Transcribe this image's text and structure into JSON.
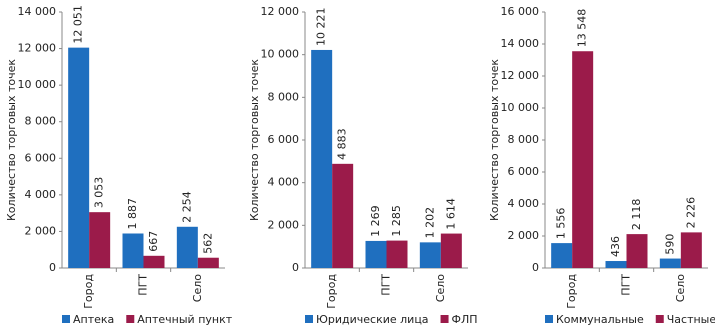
{
  "chart_data": [
    {
      "type": "bar",
      "y_label": "Количество торговых точек",
      "categories": [
        "Город",
        "ПГТ",
        "Село"
      ],
      "series": [
        {
          "name": "Аптека",
          "color": "#1f6fbf",
          "values": [
            12051,
            1887,
            2254
          ],
          "value_labels": [
            "12 051",
            "1 887",
            "2 254"
          ]
        },
        {
          "name": "Аптечный пункт",
          "color": "#9b1b4a",
          "values": [
            3053,
            667,
            562
          ],
          "value_labels": [
            "3 053",
            "667",
            "562"
          ]
        }
      ],
      "ylim": [
        0,
        14000
      ],
      "yticks": [
        0,
        {
          "value": 2000,
          "label": "2 000"
        },
        {
          "value": 4000,
          "label": "4 000"
        },
        {
          "value": 6000,
          "label": "6 000"
        },
        {
          "value": 8000,
          "label": "8 000"
        },
        {
          "value": 10000,
          "label": "10 000"
        },
        {
          "value": 12000,
          "label": "12 000"
        },
        {
          "value": 14000,
          "label": "14 000"
        }
      ],
      "legend": "bottom"
    },
    {
      "type": "bar",
      "y_label": "Количество торговых точек",
      "categories": [
        "Город",
        "ПГТ",
        "Село"
      ],
      "series": [
        {
          "name": "Юридические лица",
          "color": "#1f6fbf",
          "values": [
            10221,
            1269,
            1202
          ],
          "value_labels": [
            "10 221",
            "1 269",
            "1 202"
          ]
        },
        {
          "name": "ФЛП",
          "color": "#9b1b4a",
          "values": [
            4883,
            1285,
            1614
          ],
          "value_labels": [
            "4 883",
            "1 285",
            "1 614"
          ]
        }
      ],
      "ylim": [
        0,
        12000
      ],
      "yticks": [
        0,
        {
          "value": 2000,
          "label": "2 000"
        },
        {
          "value": 4000,
          "label": "4 000"
        },
        {
          "value": 6000,
          "label": "6 000"
        },
        {
          "value": 8000,
          "label": "8 000"
        },
        {
          "value": 10000,
          "label": "10 000"
        },
        {
          "value": 12000,
          "label": "12 000"
        }
      ],
      "legend": "bottom"
    },
    {
      "type": "bar",
      "y_label": "Количество торговых точек",
      "categories": [
        "Город",
        "ПГТ",
        "Село"
      ],
      "series": [
        {
          "name": "Коммунальные",
          "color": "#1f6fbf",
          "values": [
            1556,
            436,
            590
          ],
          "value_labels": [
            "1 556",
            "436",
            "590"
          ]
        },
        {
          "name": "Частные",
          "color": "#9b1b4a",
          "values": [
            13548,
            2118,
            2226
          ],
          "value_labels": [
            "13 548",
            "2 118",
            "2 226"
          ]
        }
      ],
      "ylim": [
        0,
        16000
      ],
      "yticks": [
        0,
        {
          "value": 2000,
          "label": "2 000"
        },
        {
          "value": 4000,
          "label": "4 000"
        },
        {
          "value": 6000,
          "label": "6 000"
        },
        {
          "value": 8000,
          "label": "8 000"
        },
        {
          "value": 10000,
          "label": "10 000"
        },
        {
          "value": 12000,
          "label": "12 000"
        },
        {
          "value": 14000,
          "label": "14 000"
        },
        {
          "value": 16000,
          "label": "16 000"
        }
      ],
      "legend": "bottom"
    }
  ]
}
